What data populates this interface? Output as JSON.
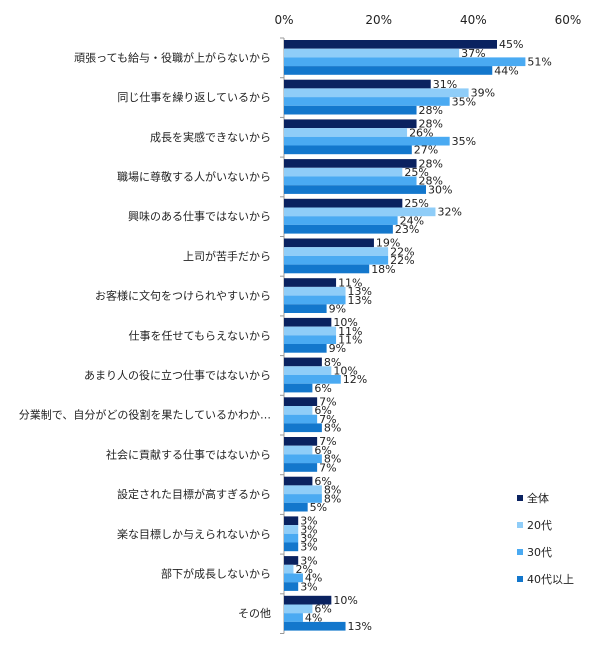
{
  "chart_data": {
    "type": "bar",
    "orientation": "horizontal",
    "xlim": [
      0,
      60
    ],
    "ticks": [
      "0%",
      "20%",
      "40%",
      "60%"
    ],
    "tick_values": [
      0,
      20,
      40,
      60
    ],
    "value_suffix": "%",
    "grid": false,
    "legend_position": "right",
    "categories": [
      "頑張っても給与・役職が上がらないから",
      "同じ仕事を繰り返しているから",
      "成長を実感できないから",
      "職場に尊敬する人がいないから",
      "興味のある仕事ではないから",
      "上司が苦手だから",
      "お客様に文句をつけられやすいから",
      "仕事を任せてもらえないから",
      "あまり人の役に立つ仕事ではないから",
      "分業制で、自分がどの役割を果たしているかわか…",
      "社会に貢献する仕事ではないから",
      "設定された目標が高すぎるから",
      "楽な目標しか与えられないから",
      "部下が成長しないから",
      "その他"
    ],
    "series": [
      {
        "name": "全体",
        "color": "#0a2260",
        "values": [
          45,
          31,
          28,
          28,
          25,
          19,
          11,
          10,
          8,
          7,
          7,
          6,
          3,
          3,
          10
        ]
      },
      {
        "name": "20代",
        "color": "#8fcdf8",
        "values": [
          37,
          39,
          26,
          25,
          32,
          22,
          13,
          11,
          10,
          6,
          6,
          8,
          3,
          2,
          6
        ]
      },
      {
        "name": "30代",
        "color": "#4aaaf2",
        "values": [
          51,
          35,
          35,
          28,
          24,
          22,
          13,
          11,
          12,
          7,
          8,
          8,
          3,
          4,
          4
        ]
      },
      {
        "name": "40代以上",
        "color": "#1377cc",
        "values": [
          44,
          28,
          27,
          30,
          23,
          18,
          9,
          9,
          6,
          8,
          7,
          5,
          3,
          3,
          13
        ]
      }
    ]
  }
}
